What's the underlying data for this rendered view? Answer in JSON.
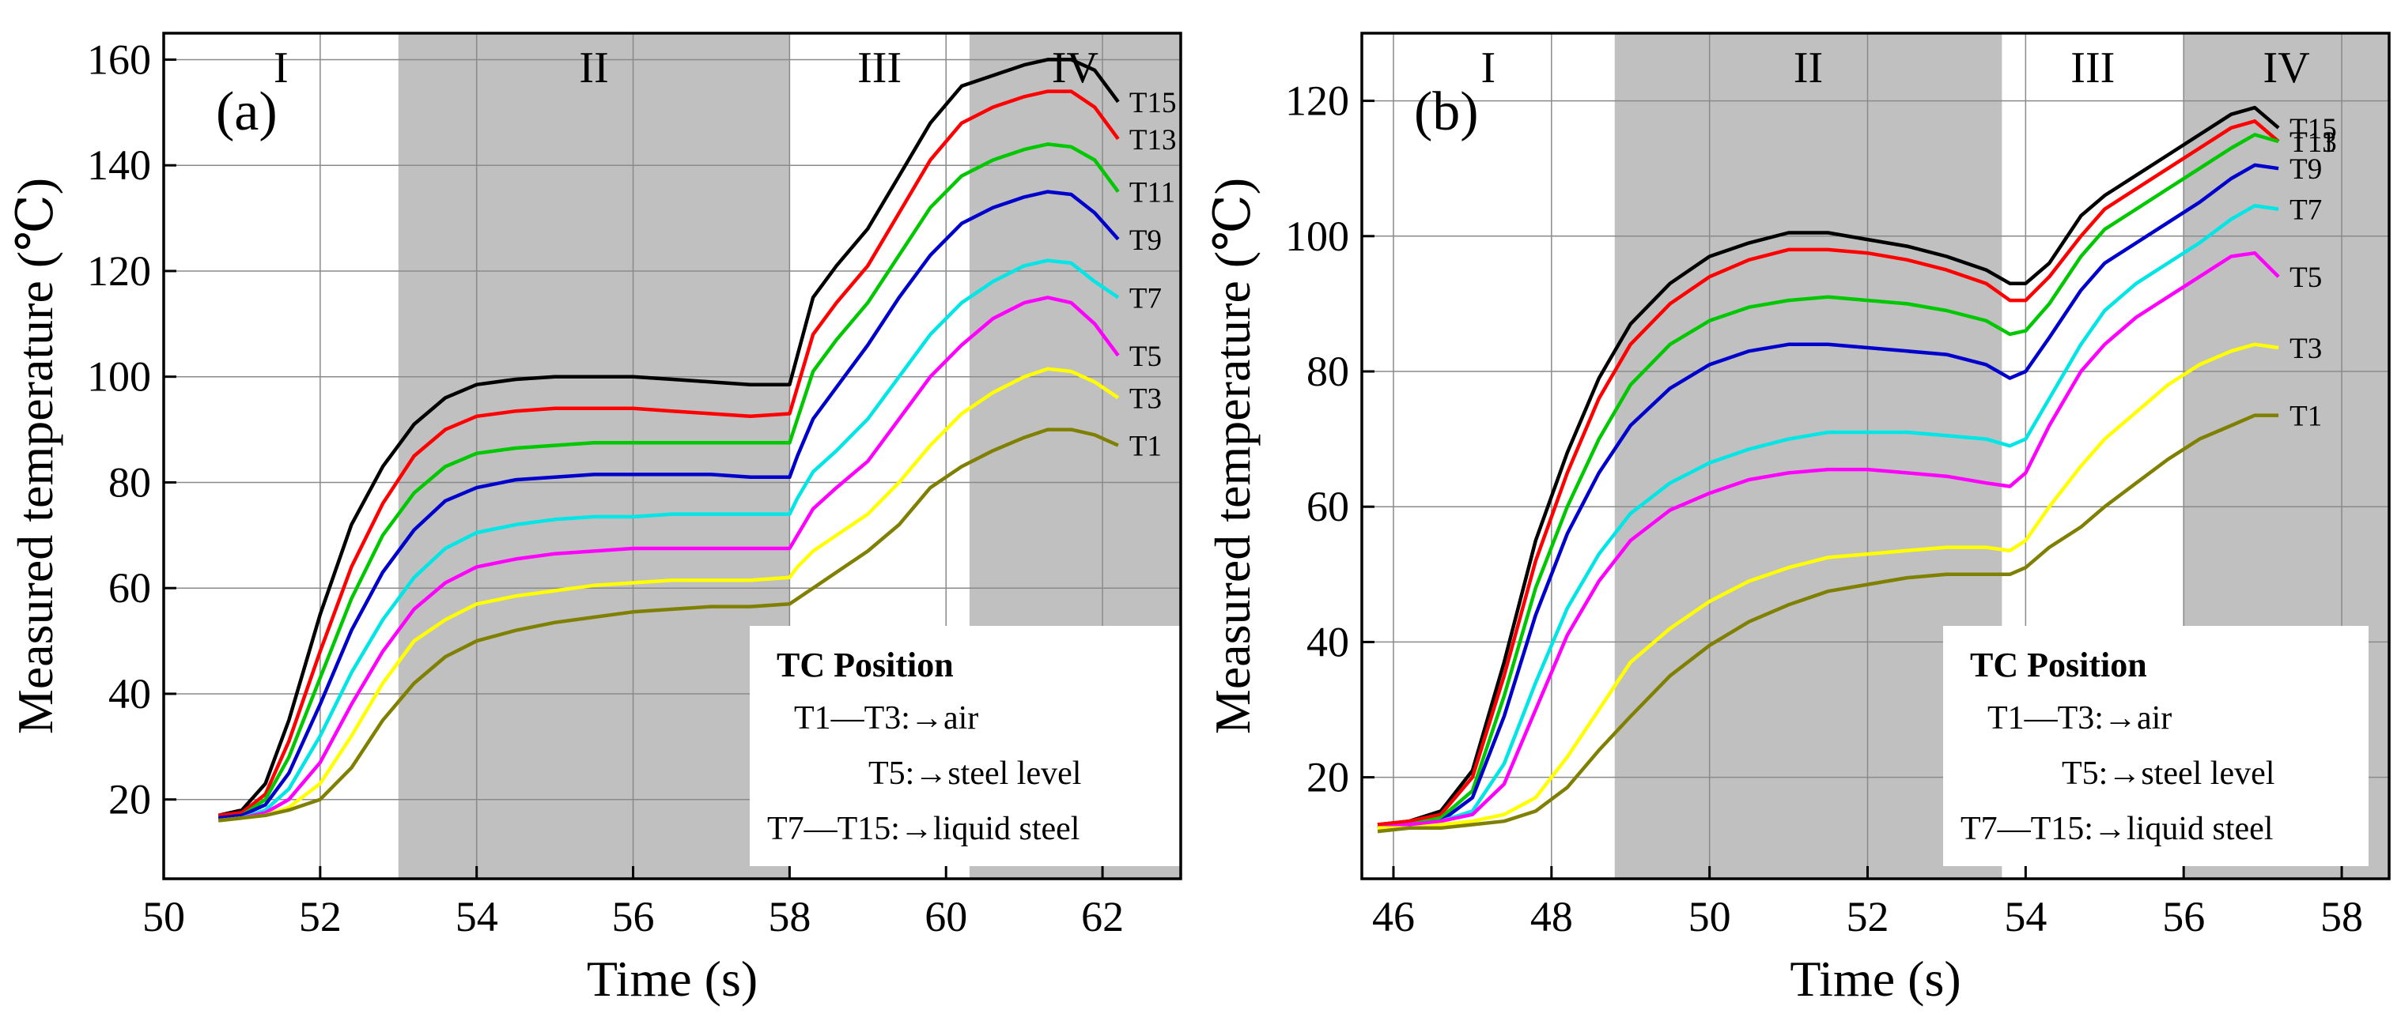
{
  "chart_data": [
    {
      "type": "line",
      "panel_label": "(a)",
      "xlabel": "Time (s)",
      "ylabel": "Measured temperature (℃)",
      "xlim": [
        50,
        63
      ],
      "ylim": [
        5,
        165
      ],
      "xticks": [
        50,
        52,
        54,
        56,
        58,
        60,
        62
      ],
      "yticks": [
        20,
        40,
        60,
        80,
        100,
        120,
        140,
        160
      ],
      "grid": true,
      "phases": [
        {
          "label": "I",
          "x_start": 50,
          "x_end": 53,
          "shaded": false
        },
        {
          "label": "II",
          "x_start": 53,
          "x_end": 58,
          "shaded": true
        },
        {
          "label": "III",
          "x_start": 58,
          "x_end": 60.3,
          "shaded": false
        },
        {
          "label": "IV",
          "x_start": 60.3,
          "x_end": 63,
          "shaded": true
        }
      ],
      "legend_box": {
        "title": "TC Position",
        "lines": [
          "T1—T3:→air",
          "T5:→steel level",
          "T7—T15:→liquid steel"
        ],
        "placement": "bottom-right"
      },
      "x": [
        50.7,
        51.0,
        51.3,
        51.6,
        52.0,
        52.4,
        52.8,
        53.2,
        53.6,
        54.0,
        54.5,
        55.0,
        55.5,
        56.0,
        56.5,
        57.0,
        57.5,
        58.0,
        58.1,
        58.3,
        58.6,
        59.0,
        59.4,
        59.8,
        60.2,
        60.6,
        61.0,
        61.3,
        61.6,
        61.9,
        62.2
      ],
      "series": [
        {
          "name": "T15",
          "color": "#000000",
          "values": [
            17,
            18,
            23,
            35,
            55,
            72,
            83,
            91,
            96,
            98.5,
            99.5,
            100,
            100,
            100,
            99.5,
            99,
            98.5,
            98.5,
            104,
            115,
            121,
            128,
            138,
            148,
            155,
            157,
            159,
            160,
            160,
            158,
            152
          ]
        },
        {
          "name": "T13",
          "color": "#ff0000",
          "values": [
            17,
            17.5,
            21,
            31,
            48,
            64,
            76,
            85,
            90,
            92.5,
            93.5,
            94,
            94,
            94,
            93.5,
            93,
            92.5,
            93,
            98,
            108,
            114,
            121,
            131,
            141,
            148,
            151,
            153,
            154,
            154,
            151,
            145
          ]
        },
        {
          "name": "T11",
          "color": "#00c800",
          "values": [
            16.5,
            17,
            20,
            28,
            43,
            58,
            70,
            78,
            83,
            85.5,
            86.5,
            87,
            87.5,
            87.5,
            87.5,
            87.5,
            87.5,
            87.5,
            92,
            101,
            107,
            114,
            123,
            132,
            138,
            141,
            143,
            144,
            143.5,
            141,
            135
          ]
        },
        {
          "name": "T9",
          "color": "#0000cc",
          "values": [
            16.5,
            17,
            19,
            25,
            38,
            52,
            63,
            71,
            76.5,
            79,
            80.5,
            81,
            81.5,
            81.5,
            81.5,
            81.5,
            81,
            81,
            85,
            92,
            98,
            106,
            115,
            123,
            129,
            132,
            134,
            135,
            134.5,
            131,
            126
          ]
        },
        {
          "name": "T7",
          "color": "#00e5e5",
          "values": [
            16,
            16.5,
            18,
            22,
            32,
            44,
            54,
            62,
            67.5,
            70.5,
            72,
            73,
            73.5,
            73.5,
            74,
            74,
            74,
            74,
            77,
            82,
            86,
            92,
            100,
            108,
            114,
            118,
            121,
            122,
            121.5,
            118,
            115
          ]
        },
        {
          "name": "T5",
          "color": "#ff00ff",
          "values": [
            16,
            16.5,
            17.5,
            20,
            27,
            38,
            48,
            56,
            61,
            64,
            65.5,
            66.5,
            67,
            67.5,
            67.5,
            67.5,
            67.5,
            67.5,
            70,
            75,
            79,
            84,
            92,
            100,
            106,
            111,
            114,
            115,
            114,
            110,
            104
          ]
        },
        {
          "name": "T3",
          "color": "#ffff00",
          "values": [
            16,
            16.5,
            17,
            18.5,
            23,
            32,
            42,
            50,
            54,
            57,
            58.5,
            59.5,
            60.5,
            61,
            61.5,
            61.5,
            61.5,
            62,
            64,
            67,
            70,
            74,
            80,
            87,
            93,
            97,
            100,
            101.5,
            101,
            99,
            96
          ]
        },
        {
          "name": "T1",
          "color": "#808000",
          "values": [
            16,
            16.5,
            17,
            18,
            20,
            26,
            35,
            42,
            47,
            50,
            52,
            53.5,
            54.5,
            55.5,
            56,
            56.5,
            56.5,
            57,
            58,
            60,
            63,
            67,
            72,
            79,
            83,
            86,
            88.5,
            90,
            90,
            89,
            87
          ]
        }
      ]
    },
    {
      "type": "line",
      "panel_label": "(b)",
      "xlabel": "Time (s)",
      "ylabel": "Measured temperature (℃)",
      "xlim": [
        45.6,
        58.6
      ],
      "ylim": [
        5,
        130
      ],
      "xticks": [
        46,
        48,
        50,
        52,
        54,
        56,
        58
      ],
      "yticks": [
        20,
        40,
        60,
        80,
        100,
        120
      ],
      "grid": true,
      "phases": [
        {
          "label": "I",
          "x_start": 45.6,
          "x_end": 48.8,
          "shaded": false
        },
        {
          "label": "II",
          "x_start": 48.8,
          "x_end": 53.7,
          "shaded": true
        },
        {
          "label": "III",
          "x_start": 53.7,
          "x_end": 56,
          "shaded": false
        },
        {
          "label": "IV",
          "x_start": 56,
          "x_end": 58.6,
          "shaded": true
        }
      ],
      "legend_box": {
        "title": "TC Position",
        "lines": [
          "T1—T3:→air",
          "T5:→steel level",
          "T7—T15:→liquid steel"
        ],
        "placement": "bottom-right"
      },
      "x": [
        45.8,
        46.2,
        46.6,
        47.0,
        47.4,
        47.8,
        48.2,
        48.6,
        49.0,
        49.5,
        50.0,
        50.5,
        51.0,
        51.5,
        52.0,
        52.5,
        53.0,
        53.5,
        53.8,
        54.0,
        54.3,
        54.7,
        55.0,
        55.4,
        55.8,
        56.2,
        56.6,
        56.9,
        57.2
      ],
      "series": [
        {
          "name": "T15",
          "color": "#000000",
          "values": [
            13,
            13.5,
            15,
            21,
            37,
            55,
            68,
            79,
            87,
            93,
            97,
            99,
            100.5,
            100.5,
            99.5,
            98.5,
            97,
            95,
            93,
            93,
            96,
            103,
            106,
            109,
            112,
            115,
            118,
            119,
            116
          ]
        },
        {
          "name": "T13",
          "color": "#ff0000",
          "values": [
            13,
            13.5,
            14.5,
            20,
            35,
            52,
            65,
            76,
            84,
            90,
            94,
            96.5,
            98,
            98,
            97.5,
            96.5,
            95,
            93,
            90.5,
            90.5,
            94,
            100,
            104,
            107,
            110,
            113,
            116,
            117,
            114
          ]
        },
        {
          "name": "T11",
          "color": "#00c800",
          "values": [
            12.5,
            13,
            14,
            18,
            32,
            48,
            60,
            70,
            78,
            84,
            87.5,
            89.5,
            90.5,
            91,
            90.5,
            90,
            89,
            87.5,
            85.5,
            86,
            90,
            97,
            101,
            104,
            107,
            110,
            113,
            115,
            114
          ]
        },
        {
          "name": "T9",
          "color": "#0000cc",
          "values": [
            12.5,
            13,
            13.5,
            17,
            29,
            44,
            56,
            65,
            72,
            77.5,
            81,
            83,
            84,
            84,
            83.5,
            83,
            82.5,
            81,
            79,
            80,
            85,
            92,
            96,
            99,
            102,
            105,
            108.5,
            110.5,
            110
          ]
        },
        {
          "name": "T7",
          "color": "#00e5e5",
          "values": [
            12.5,
            13,
            13.5,
            15,
            22,
            34,
            45,
            53,
            59,
            63.5,
            66.5,
            68.5,
            70,
            71,
            71,
            71,
            70.5,
            70,
            69,
            70,
            76,
            84,
            89,
            93,
            96,
            99,
            102.5,
            104.5,
            104
          ]
        },
        {
          "name": "T5",
          "color": "#ff00ff",
          "values": [
            12.5,
            13,
            13.5,
            14.5,
            19,
            30,
            41,
            49,
            55,
            59.5,
            62,
            64,
            65,
            65.5,
            65.5,
            65,
            64.5,
            63.5,
            63,
            65,
            72,
            80,
            84,
            88,
            91,
            94,
            97,
            97.5,
            94
          ]
        },
        {
          "name": "T3",
          "color": "#ffff00",
          "values": [
            12.5,
            12.5,
            13,
            13.5,
            14.5,
            17,
            23,
            30,
            37,
            42,
            46,
            49,
            51,
            52.5,
            53,
            53.5,
            54,
            54,
            53.5,
            55,
            60,
            66,
            70,
            74,
            78,
            81,
            83,
            84,
            83.5
          ]
        },
        {
          "name": "T1",
          "color": "#808000",
          "values": [
            12,
            12.5,
            12.5,
            13,
            13.5,
            15,
            18.5,
            24,
            29,
            35,
            39.5,
            43,
            45.5,
            47.5,
            48.5,
            49.5,
            50,
            50,
            50,
            51,
            54,
            57,
            60,
            63.5,
            67,
            70,
            72,
            73.5,
            73.5
          ]
        }
      ]
    }
  ]
}
